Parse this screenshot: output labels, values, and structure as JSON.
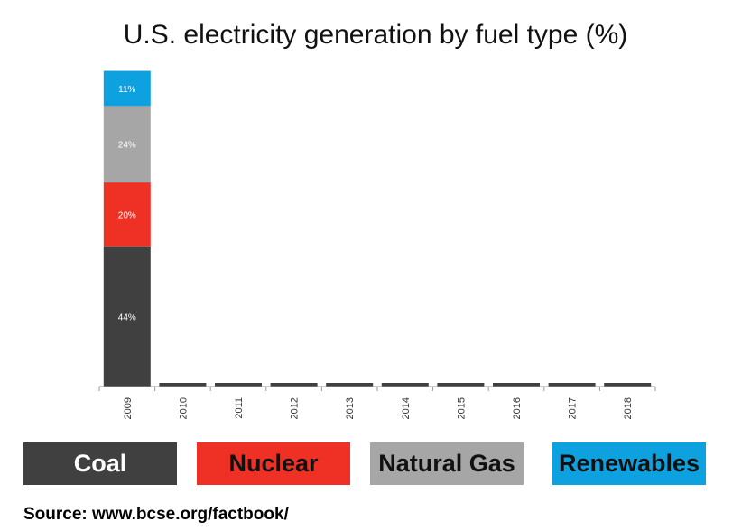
{
  "chart_data": {
    "type": "bar",
    "stacked": true,
    "title": "U.S. electricity generation by fuel type (%)",
    "categories": [
      "2009",
      "2010",
      "2011",
      "2012",
      "2013",
      "2014",
      "2015",
      "2016",
      "2017",
      "2018"
    ],
    "series": [
      {
        "name": "Coal",
        "color": "#404040",
        "values": [
          44,
          0,
          0,
          0,
          0,
          0,
          0,
          0,
          0,
          0
        ],
        "labels": [
          "44%",
          "",
          "",
          "",
          "",
          "",
          "",
          "",
          "",
          ""
        ]
      },
      {
        "name": "Nuclear",
        "color": "#ee3124",
        "values": [
          20,
          0,
          0,
          0,
          0,
          0,
          0,
          0,
          0,
          0
        ],
        "labels": [
          "20%",
          "",
          "",
          "",
          "",
          "",
          "",
          "",
          "",
          ""
        ]
      },
      {
        "name": "Natural Gas",
        "color": "#a6a6a6",
        "values": [
          24,
          0,
          0,
          0,
          0,
          0,
          0,
          0,
          0,
          0
        ],
        "labels": [
          "24%",
          "",
          "",
          "",
          "",
          "",
          "",
          "",
          "",
          ""
        ]
      },
      {
        "name": "Renewables",
        "color": "#0ea1e0",
        "values": [
          11,
          0,
          0,
          0,
          0,
          0,
          0,
          0,
          0,
          0
        ],
        "labels": [
          "11%",
          "",
          "",
          "",
          "",
          "",
          "",
          "",
          "",
          ""
        ]
      }
    ],
    "ylim": [
      0,
      100
    ],
    "legend_position": "bottom",
    "grid": false
  },
  "legend": {
    "items": [
      {
        "label": "Coal",
        "bg": "#404040",
        "fg": "#ffffff"
      },
      {
        "label": "Nuclear",
        "bg": "#ee3124",
        "fg": "#111111"
      },
      {
        "label": "Natural Gas",
        "bg": "#a6a6a6",
        "fg": "#111111"
      },
      {
        "label": "Renewables",
        "bg": "#0ea1e0",
        "fg": "#111111"
      }
    ]
  },
  "source_text": "Source: www.bcse.org/factbook/"
}
